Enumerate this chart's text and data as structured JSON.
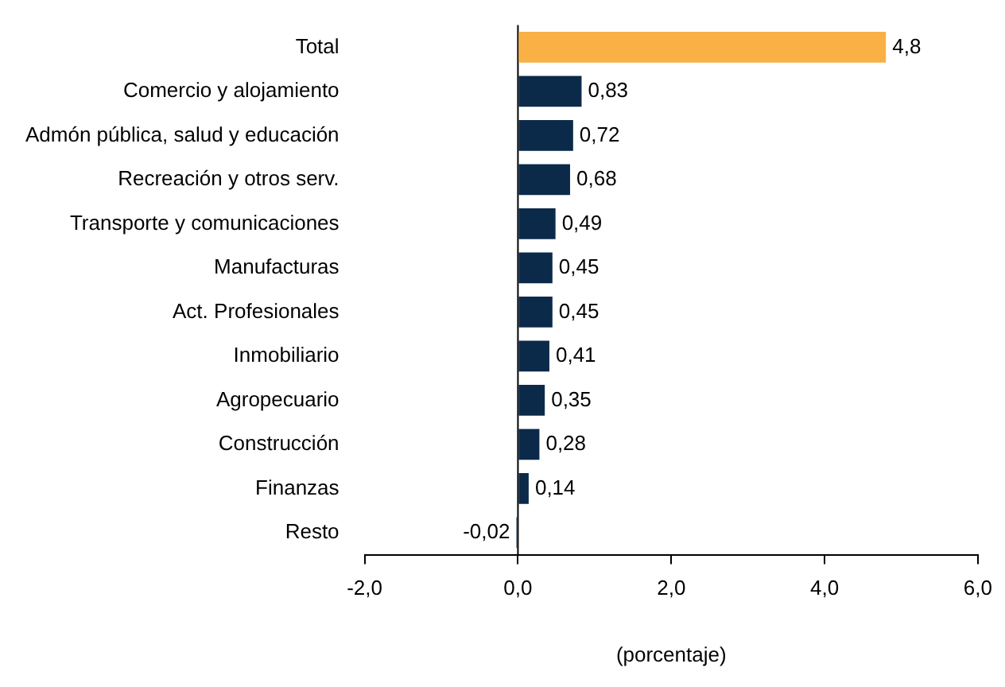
{
  "chart_data": {
    "type": "bar",
    "orientation": "horizontal",
    "xlabel": "(porcentaje)",
    "categories": [
      "Total",
      "Comercio y alojamiento",
      "Admón pública, salud y educación",
      "Recreación y otros serv.",
      "Transporte y comunicaciones",
      "Manufacturas",
      "Act. Profesionales",
      "Inmobiliario",
      "Agropecuario",
      "Construcción",
      "Finanzas",
      "Resto"
    ],
    "values": [
      4.8,
      0.83,
      0.72,
      0.68,
      0.49,
      0.45,
      0.45,
      0.41,
      0.35,
      0.28,
      0.14,
      -0.02
    ],
    "colors": [
      "#f9b044",
      "#0b2a4a",
      "#0b2a4a",
      "#0b2a4a",
      "#0b2a4a",
      "#0b2a4a",
      "#0b2a4a",
      "#0b2a4a",
      "#0b2a4a",
      "#0b2a4a",
      "#0b2a4a",
      "#0b2a4a"
    ],
    "xlim": [
      -2,
      6
    ],
    "xticks": [
      {
        "value": -2,
        "label": "-2,0"
      },
      {
        "value": 0,
        "label": "0,0"
      },
      {
        "value": 2,
        "label": "2,0"
      },
      {
        "value": 4,
        "label": "4,0"
      },
      {
        "value": 6,
        "label": "6,0"
      }
    ],
    "ref_lines": [
      {
        "axis": "x",
        "value": 0,
        "color": "#000000"
      }
    ],
    "value_labels": [
      "4,8",
      "0,83",
      "0,72",
      "0,68",
      "0,49",
      "0,45",
      "0,45",
      "0,41",
      "0,35",
      "0,28",
      "0,14",
      "-0,02"
    ],
    "grid": false,
    "legend": false
  }
}
